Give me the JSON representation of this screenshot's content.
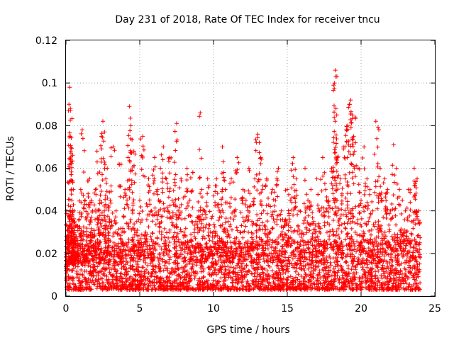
{
  "chart_data": {
    "type": "scatter",
    "title": "Day 231 of 2018, Rate Of TEC Index for receiver tncu",
    "xlabel": "GPS time / hours",
    "ylabel": "ROTI / TECUs",
    "xlim": [
      0,
      25
    ],
    "ylim": [
      0,
      0.12
    ],
    "x_ticks": [
      0,
      5,
      10,
      15,
      20,
      25
    ],
    "x_tick_labels": [
      "0",
      "5",
      "10",
      "15",
      "20",
      "25"
    ],
    "y_ticks": [
      0,
      0.02,
      0.04,
      0.06,
      0.08,
      0.1,
      0.12
    ],
    "y_tick_labels": [
      "0",
      "0.02",
      "0.04",
      "0.06",
      "0.08",
      "0.1",
      "0.12"
    ],
    "grid": true,
    "marker": "plus",
    "color": "#ff0000",
    "series": [
      {
        "x": [
          0.0,
          0.05,
          0.1,
          0.15,
          0.2,
          0.25,
          0.3,
          0.3,
          0.32,
          0.35,
          0.35,
          0.4,
          0.4,
          0.45,
          0.5,
          0.5,
          0.55,
          0.6,
          0.7,
          0.8,
          0.9,
          1.0,
          1.1,
          1.2,
          1.3,
          1.4,
          1.5,
          1.6,
          1.7,
          1.8,
          1.9,
          2.0,
          2.1,
          2.2,
          2.3,
          2.4,
          2.5,
          2.6,
          2.7,
          2.8,
          2.9,
          3.0,
          3.2,
          3.4,
          3.6,
          3.8,
          4.0,
          4.2,
          4.3,
          4.4,
          4.5,
          4.6,
          4.8,
          5.0,
          5.2,
          5.4,
          5.6,
          5.8,
          6.0,
          6.2,
          6.4,
          6.6,
          6.8,
          7.0,
          7.2,
          7.4,
          7.5,
          7.6,
          7.8,
          8.0,
          8.2,
          8.4,
          8.6,
          8.8,
          9.0,
          9.1,
          9.2,
          9.4,
          9.6,
          9.8,
          10.0,
          10.2,
          10.4,
          10.6,
          10.7,
          10.8,
          11.0,
          11.2,
          11.4,
          11.6,
          11.8,
          12.0,
          12.2,
          12.4,
          12.6,
          12.8,
          13.0,
          13.1,
          13.2,
          13.4,
          13.6,
          13.8,
          14.0,
          14.2,
          14.4,
          14.6,
          14.8,
          15.0,
          15.2,
          15.4,
          15.6,
          15.8,
          16.0,
          16.2,
          16.4,
          16.6,
          16.8,
          17.0,
          17.2,
          17.4,
          17.6,
          17.8,
          18.0,
          18.2,
          18.25,
          18.3,
          18.35,
          18.4,
          18.6,
          18.8,
          19.0,
          19.1,
          19.2,
          19.3,
          19.4,
          19.5,
          19.6,
          19.8,
          20.0,
          20.2,
          20.4,
          20.6,
          20.8,
          21.0,
          21.2,
          21.3,
          21.4,
          21.6,
          21.8,
          22.0,
          22.2,
          22.4,
          22.6,
          22.8,
          23.0,
          23.2,
          23.4,
          23.6,
          23.8,
          23.9
        ],
        "y": [
          0.012,
          0.04,
          0.025,
          0.038,
          0.09,
          0.098,
          0.075,
          0.088,
          0.068,
          0.057,
          0.03,
          0.045,
          0.02,
          0.035,
          0.05,
          0.015,
          0.04,
          0.028,
          0.033,
          0.02,
          0.036,
          0.05,
          0.078,
          0.03,
          0.045,
          0.02,
          0.048,
          0.055,
          0.03,
          0.04,
          0.024,
          0.05,
          0.068,
          0.032,
          0.045,
          0.075,
          0.082,
          0.04,
          0.055,
          0.06,
          0.03,
          0.045,
          0.07,
          0.04,
          0.062,
          0.03,
          0.05,
          0.065,
          0.089,
          0.08,
          0.04,
          0.068,
          0.035,
          0.045,
          0.075,
          0.03,
          0.055,
          0.04,
          0.065,
          0.05,
          0.06,
          0.07,
          0.055,
          0.065,
          0.045,
          0.052,
          0.081,
          0.04,
          0.055,
          0.03,
          0.06,
          0.045,
          0.058,
          0.035,
          0.04,
          0.086,
          0.05,
          0.04,
          0.055,
          0.03,
          0.047,
          0.055,
          0.04,
          0.07,
          0.058,
          0.05,
          0.035,
          0.055,
          0.04,
          0.065,
          0.03,
          0.05,
          0.045,
          0.06,
          0.035,
          0.055,
          0.076,
          0.072,
          0.065,
          0.04,
          0.055,
          0.03,
          0.05,
          0.045,
          0.06,
          0.04,
          0.035,
          0.05,
          0.045,
          0.065,
          0.055,
          0.04,
          0.03,
          0.06,
          0.045,
          0.05,
          0.035,
          0.055,
          0.04,
          0.065,
          0.05,
          0.045,
          0.06,
          0.1,
          0.106,
          0.088,
          0.085,
          0.065,
          0.055,
          0.07,
          0.078,
          0.08,
          0.09,
          0.092,
          0.085,
          0.075,
          0.084,
          0.06,
          0.045,
          0.07,
          0.055,
          0.05,
          0.04,
          0.082,
          0.078,
          0.06,
          0.045,
          0.055,
          0.05,
          0.04,
          0.071,
          0.06,
          0.05,
          0.045,
          0.04,
          0.05,
          0.035,
          0.06,
          0.055,
          0.04
        ]
      }
    ],
    "dense_band": {
      "min": 0.003,
      "max": 0.026,
      "median": 0.01,
      "x_range": [
        0,
        24
      ]
    }
  }
}
